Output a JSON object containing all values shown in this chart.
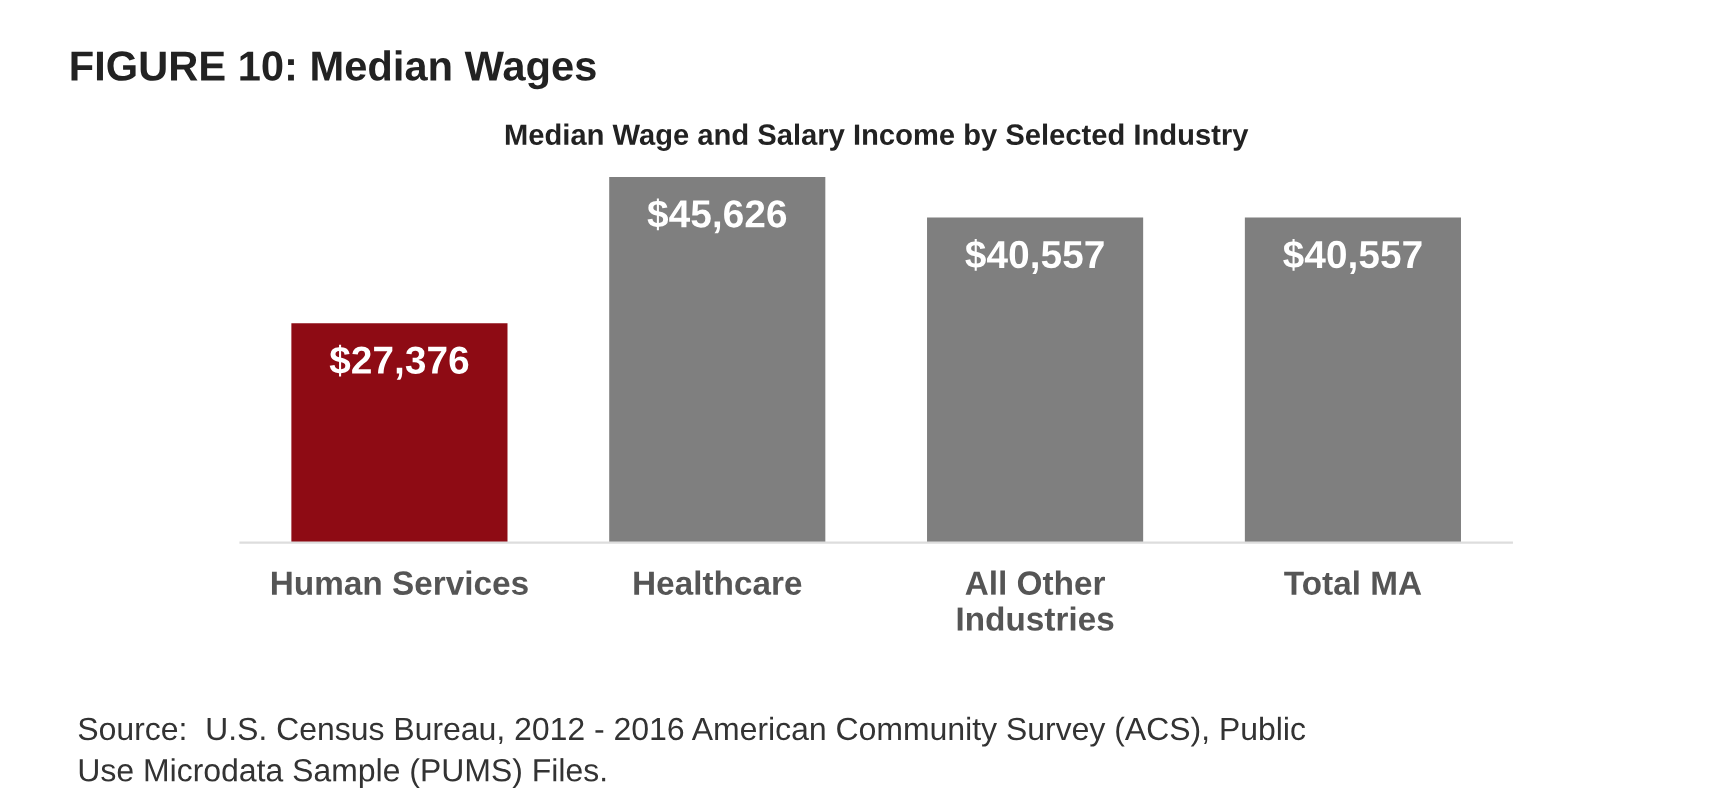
{
  "chart_data": {
    "type": "bar",
    "title": "FIGURE 10: Median Wages",
    "subtitle": "Median Wage and Salary Income by Selected Industry",
    "categories": [
      "Human Services",
      "Healthcare",
      "All Other\nIndustries",
      "Total MA"
    ],
    "values": [
      27376,
      45626,
      40557,
      40557
    ],
    "colors": [
      "#8e0b14",
      "#7f7f7f",
      "#7f7f7f",
      "#7f7f7f"
    ],
    "value_labels": [
      "$27,376",
      "$45,626",
      "$40,557",
      "$40,557"
    ],
    "annotations": [
      "Source:  U.S. Census Bureau, 2012 - 2016 American Community Survey (ACS), Public\nUse Microdata Sample (PUMS) Files."
    ],
    "grid": false,
    "legend": false
  }
}
